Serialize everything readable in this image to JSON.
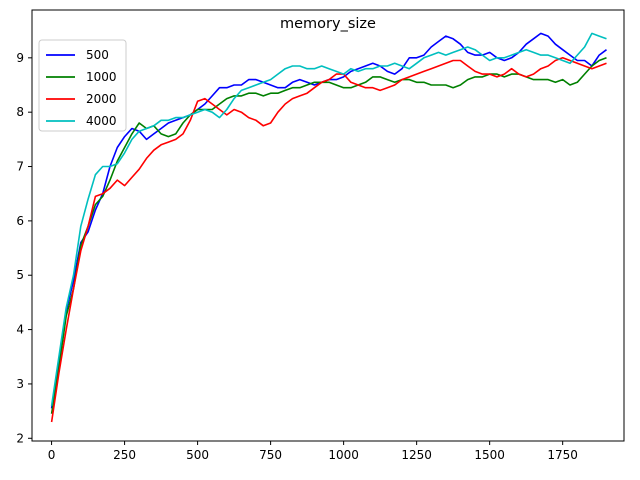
{
  "chart_data": {
    "type": "line",
    "title": "memory_size",
    "xlabel": "",
    "ylabel": "",
    "xlim": [
      -67,
      1960
    ],
    "ylim": [
      1.95,
      9.88
    ],
    "xticks": [
      0,
      250,
      500,
      750,
      1000,
      1250,
      1500,
      1750
    ],
    "yticks": [
      2,
      3,
      4,
      5,
      6,
      7,
      8,
      9
    ],
    "grid": false,
    "legend_position": "top-left",
    "x": [
      0,
      25,
      50,
      75,
      100,
      125,
      150,
      175,
      200,
      225,
      250,
      275,
      300,
      325,
      350,
      375,
      400,
      425,
      450,
      475,
      500,
      525,
      550,
      575,
      600,
      625,
      650,
      675,
      700,
      725,
      750,
      775,
      800,
      825,
      850,
      875,
      900,
      925,
      950,
      975,
      1000,
      1025,
      1050,
      1075,
      1100,
      1125,
      1150,
      1175,
      1200,
      1225,
      1250,
      1275,
      1300,
      1325,
      1350,
      1375,
      1400,
      1425,
      1450,
      1475,
      1500,
      1525,
      1550,
      1575,
      1600,
      1625,
      1650,
      1675,
      1700,
      1725,
      1750,
      1775,
      1800,
      1825,
      1850,
      1875,
      1900
    ],
    "series": [
      {
        "name": "500",
        "color": "#0000ff",
        "values": [
          2.55,
          3.4,
          4.35,
          4.9,
          5.6,
          5.8,
          6.2,
          6.5,
          7.0,
          7.35,
          7.55,
          7.7,
          7.65,
          7.5,
          7.6,
          7.7,
          7.8,
          7.85,
          7.9,
          7.95,
          8.05,
          8.15,
          8.3,
          8.45,
          8.45,
          8.5,
          8.5,
          8.6,
          8.6,
          8.55,
          8.5,
          8.45,
          8.45,
          8.55,
          8.6,
          8.55,
          8.5,
          8.55,
          8.6,
          8.6,
          8.65,
          8.75,
          8.8,
          8.85,
          8.9,
          8.85,
          8.75,
          8.7,
          8.8,
          9.0,
          9.0,
          9.05,
          9.2,
          9.3,
          9.4,
          9.35,
          9.25,
          9.1,
          9.05,
          9.05,
          9.1,
          9.0,
          8.95,
          9.0,
          9.1,
          9.25,
          9.35,
          9.45,
          9.4,
          9.25,
          9.15,
          9.05,
          8.95,
          8.95,
          8.85,
          9.05,
          9.15
        ]
      },
      {
        "name": "1000",
        "color": "#008000",
        "values": [
          2.45,
          3.3,
          4.25,
          4.75,
          5.55,
          5.9,
          6.3,
          6.45,
          6.75,
          7.1,
          7.35,
          7.6,
          7.8,
          7.7,
          7.75,
          7.6,
          7.55,
          7.6,
          7.8,
          7.95,
          8.05,
          8.05,
          8.05,
          8.15,
          8.25,
          8.3,
          8.3,
          8.35,
          8.35,
          8.3,
          8.35,
          8.35,
          8.4,
          8.45,
          8.45,
          8.5,
          8.55,
          8.55,
          8.55,
          8.5,
          8.45,
          8.45,
          8.5,
          8.55,
          8.65,
          8.65,
          8.6,
          8.55,
          8.6,
          8.6,
          8.55,
          8.55,
          8.5,
          8.5,
          8.5,
          8.45,
          8.5,
          8.6,
          8.65,
          8.65,
          8.7,
          8.7,
          8.65,
          8.7,
          8.7,
          8.65,
          8.6,
          8.6,
          8.6,
          8.55,
          8.6,
          8.5,
          8.55,
          8.7,
          8.85,
          8.95,
          9.0
        ]
      },
      {
        "name": "2000",
        "color": "#ff0000",
        "values": [
          2.3,
          3.2,
          4.0,
          4.75,
          5.45,
          5.9,
          6.45,
          6.5,
          6.6,
          6.75,
          6.65,
          6.8,
          6.95,
          7.15,
          7.3,
          7.4,
          7.45,
          7.5,
          7.6,
          7.85,
          8.2,
          8.25,
          8.15,
          8.05,
          7.95,
          8.05,
          8.0,
          7.9,
          7.85,
          7.75,
          7.8,
          8.0,
          8.15,
          8.25,
          8.3,
          8.35,
          8.45,
          8.55,
          8.6,
          8.7,
          8.7,
          8.55,
          8.5,
          8.45,
          8.45,
          8.4,
          8.45,
          8.5,
          8.6,
          8.65,
          8.7,
          8.75,
          8.8,
          8.85,
          8.9,
          8.95,
          8.95,
          8.85,
          8.75,
          8.7,
          8.7,
          8.65,
          8.7,
          8.8,
          8.7,
          8.65,
          8.7,
          8.8,
          8.85,
          8.95,
          9.0,
          8.95,
          8.9,
          8.85,
          8.8,
          8.85,
          8.9
        ]
      },
      {
        "name": "4000",
        "color": "#00bfbf",
        "values": [
          2.6,
          3.5,
          4.4,
          5.0,
          5.9,
          6.4,
          6.85,
          7.0,
          7.0,
          7.05,
          7.25,
          7.5,
          7.65,
          7.7,
          7.75,
          7.85,
          7.85,
          7.9,
          7.9,
          7.95,
          8.0,
          8.05,
          8.0,
          7.9,
          8.05,
          8.25,
          8.4,
          8.45,
          8.5,
          8.55,
          8.6,
          8.7,
          8.8,
          8.85,
          8.85,
          8.8,
          8.8,
          8.85,
          8.8,
          8.75,
          8.7,
          8.8,
          8.75,
          8.8,
          8.8,
          8.85,
          8.85,
          8.9,
          8.85,
          8.8,
          8.9,
          9.0,
          9.05,
          9.1,
          9.05,
          9.1,
          9.15,
          9.2,
          9.15,
          9.05,
          8.95,
          9.0,
          9.0,
          9.05,
          9.1,
          9.15,
          9.1,
          9.05,
          9.05,
          9.0,
          8.95,
          8.9,
          9.05,
          9.2,
          9.45,
          9.4,
          9.35
        ]
      }
    ]
  }
}
